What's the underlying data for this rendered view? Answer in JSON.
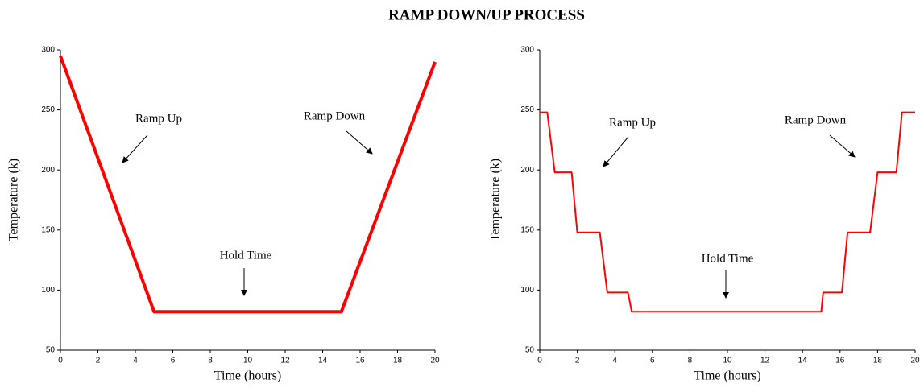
{
  "title": "RAMP DOWN/UP PROCESS",
  "chart_data": [
    {
      "type": "line",
      "xlabel": "Time (hours)",
      "ylabel": "Temperature (k)",
      "x": [
        0,
        5,
        15,
        20
      ],
      "values": [
        295,
        82,
        82,
        290
      ],
      "color": "#ff0000",
      "xlim": [
        0,
        20
      ],
      "xticks": [
        0,
        2,
        4,
        6,
        8,
        10,
        12,
        14,
        16,
        18,
        20
      ],
      "ylim": [
        50,
        300
      ],
      "yticks": [
        50,
        100,
        150,
        200,
        250,
        300
      ],
      "annotations": [
        "Ramp Up",
        "Ramp Down",
        "Hold Time"
      ]
    },
    {
      "type": "line",
      "xlabel": "Time (hours)",
      "ylabel": "Temperature (k)",
      "x": [
        0,
        0.4,
        0.8,
        1.7,
        2.0,
        3.2,
        3.6,
        4.7,
        4.9,
        15.0,
        15.1,
        16.1,
        16.4,
        17.6,
        18.0,
        19.0,
        19.3,
        20
      ],
      "values": [
        248,
        248,
        198,
        198,
        148,
        148,
        98,
        98,
        82,
        82,
        98,
        98,
        148,
        148,
        198,
        198,
        248,
        248
      ],
      "color": "#ff0000",
      "xlim": [
        0,
        20
      ],
      "xticks": [
        0,
        2,
        4,
        6,
        8,
        10,
        12,
        14,
        16,
        18,
        20
      ],
      "ylim": [
        50,
        300
      ],
      "yticks": [
        50,
        100,
        150,
        200,
        250,
        300
      ],
      "annotations": [
        "Ramp Up",
        "Ramp Down",
        "Hold Time"
      ]
    }
  ]
}
